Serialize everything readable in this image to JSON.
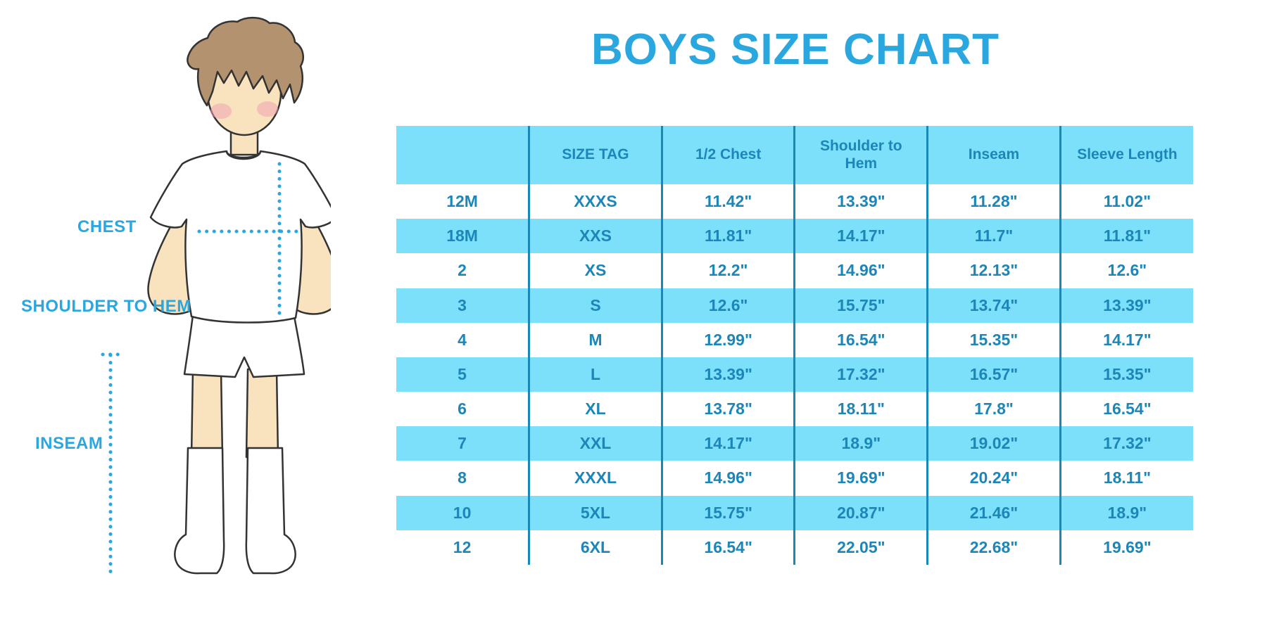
{
  "title": "BOYS SIZE CHART",
  "colors": {
    "accent": "#2BA7E0",
    "table_text": "#1C86B8",
    "row_fill": "#7CE0FA",
    "divider": "#1888B8",
    "skin": "#F8E3BE",
    "hair": "#B3936F",
    "blush": "#F1A2B1",
    "outline": "#333333",
    "garment": "#FFFFFF"
  },
  "figure": {
    "labels": {
      "chest": "CHEST",
      "shoulder_to_hem": "SHOULDER TO HEM",
      "inseam": "INSEAM"
    }
  },
  "chart_data": {
    "type": "table",
    "title": "BOYS SIZE CHART",
    "headers": [
      "",
      "SIZE TAG",
      "1/2 Chest",
      "Shoulder to Hem",
      "Inseam",
      "Sleeve Length"
    ],
    "rows": [
      [
        "12M",
        "XXXS",
        "11.42\"",
        "13.39\"",
        "11.28\"",
        "11.02\""
      ],
      [
        "18M",
        "XXS",
        "11.81\"",
        "14.17\"",
        "11.7\"",
        "11.81\""
      ],
      [
        "2",
        "XS",
        "12.2\"",
        "14.96\"",
        "12.13\"",
        "12.6\""
      ],
      [
        "3",
        "S",
        "12.6\"",
        "15.75\"",
        "13.74\"",
        "13.39\""
      ],
      [
        "4",
        "M",
        "12.99\"",
        "16.54\"",
        "15.35\"",
        "14.17\""
      ],
      [
        "5",
        "L",
        "13.39\"",
        "17.32\"",
        "16.57\"",
        "15.35\""
      ],
      [
        "6",
        "XL",
        "13.78\"",
        "18.11\"",
        "17.8\"",
        "16.54\""
      ],
      [
        "7",
        "XXL",
        "14.17\"",
        "18.9\"",
        "19.02\"",
        "17.32\""
      ],
      [
        "8",
        "XXXL",
        "14.96\"",
        "19.69\"",
        "20.24\"",
        "18.11\""
      ],
      [
        "10",
        "5XL",
        "15.75\"",
        "20.87\"",
        "21.46\"",
        "18.9\""
      ],
      [
        "12",
        "6XL",
        "16.54\"",
        "22.05\"",
        "22.68\"",
        "19.69\""
      ]
    ]
  }
}
